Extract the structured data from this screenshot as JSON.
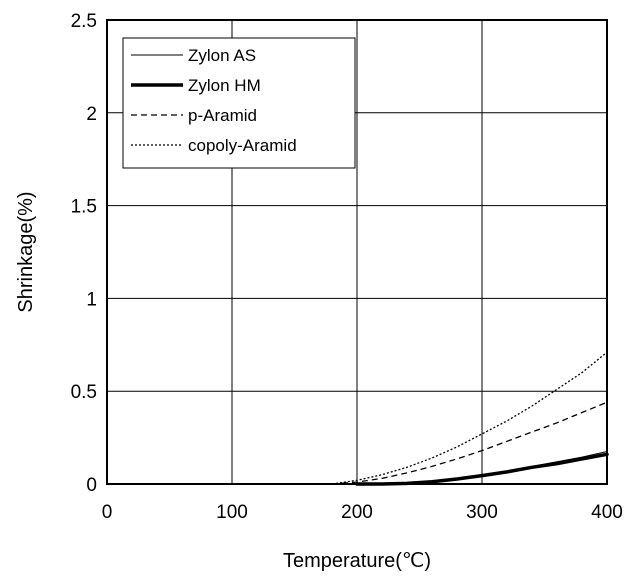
{
  "chart_data": {
    "type": "line",
    "title": "",
    "xlabel": "Temperature(℃)",
    "ylabel": "Shrinkage(%)",
    "xlim": [
      0,
      400
    ],
    "ylim": [
      0,
      2.5
    ],
    "x_ticks": [
      "0",
      "100",
      "200",
      "300",
      "400"
    ],
    "y_ticks": [
      "0",
      "0.5",
      "1",
      "1.5",
      "2",
      "2.5"
    ],
    "grid": true,
    "legend_position": "top-left",
    "series": [
      {
        "name": "Zylon AS",
        "style": "thin-solid",
        "x": [
          200,
          220,
          240,
          260,
          280,
          300,
          320,
          340,
          360,
          380,
          400
        ],
        "y": [
          0,
          0,
          0.005,
          0.015,
          0.03,
          0.05,
          0.07,
          0.095,
          0.12,
          0.145,
          0.175
        ]
      },
      {
        "name": "Zylon HM",
        "style": "thick-solid",
        "x": [
          200,
          220,
          240,
          260,
          280,
          300,
          320,
          340,
          360,
          380,
          400
        ],
        "y": [
          0,
          0,
          0.003,
          0.012,
          0.027,
          0.045,
          0.065,
          0.09,
          0.11,
          0.135,
          0.16
        ]
      },
      {
        "name": "p-Aramid",
        "style": "dashed",
        "x": [
          180,
          200,
          220,
          240,
          260,
          280,
          300,
          320,
          340,
          360,
          380,
          400
        ],
        "y": [
          0,
          0.01,
          0.03,
          0.06,
          0.095,
          0.135,
          0.18,
          0.23,
          0.28,
          0.33,
          0.385,
          0.44
        ]
      },
      {
        "name": "copoly-Aramid",
        "style": "dotted",
        "x": [
          180,
          200,
          220,
          240,
          260,
          280,
          300,
          320,
          340,
          360,
          380,
          400
        ],
        "y": [
          0,
          0.02,
          0.05,
          0.09,
          0.14,
          0.2,
          0.27,
          0.34,
          0.42,
          0.51,
          0.6,
          0.71
        ]
      }
    ]
  }
}
